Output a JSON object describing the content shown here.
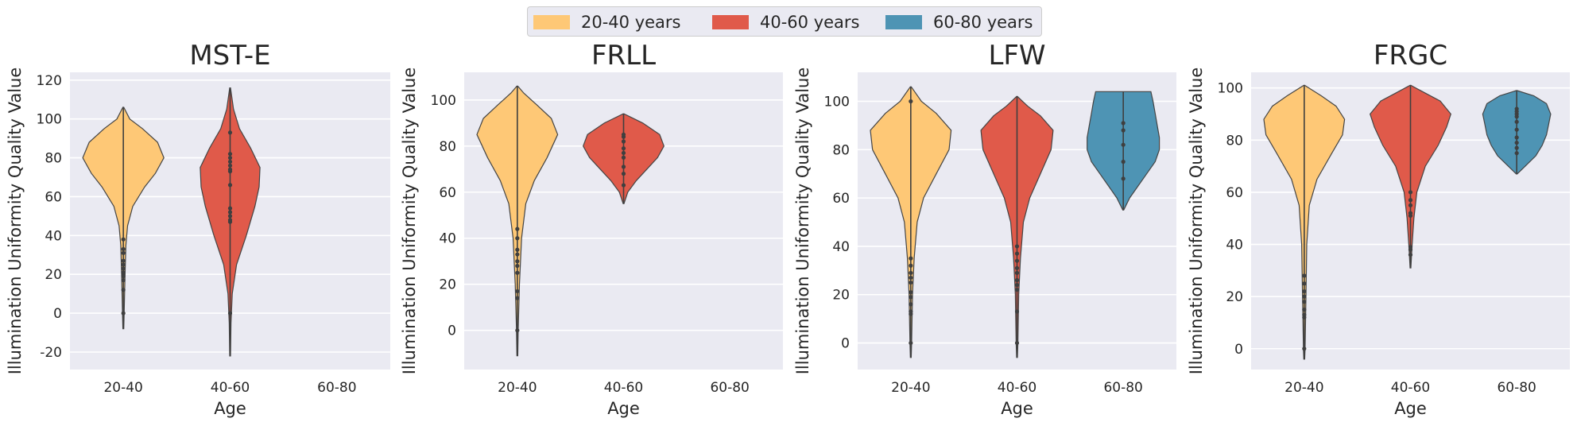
{
  "legend": {
    "placement": "top-center",
    "items": [
      {
        "label": "20-40 years",
        "color": "#fec876"
      },
      {
        "label": "40-60 years",
        "color": "#e05a4a"
      },
      {
        "label": "60-80 years",
        "color": "#4e94b4"
      }
    ]
  },
  "chart_data": [
    {
      "type": "violin",
      "title": "MST-E",
      "xlabel": "Age",
      "ylabel": "Illumination Uniformity Quality Value",
      "categories": [
        "20-40",
        "40-60",
        "60-80"
      ],
      "ylim": [
        -29,
        124
      ],
      "yticks": [
        -20,
        0,
        20,
        40,
        60,
        80,
        100,
        120
      ],
      "grid": true,
      "series": [
        {
          "category": "20-40",
          "color": "#fec876",
          "range": [
            -8,
            106
          ],
          "profile": [
            [
              -8,
              0.01
            ],
            [
              0,
              0.02
            ],
            [
              20,
              0.04
            ],
            [
              35,
              0.06
            ],
            [
              45,
              0.1
            ],
            [
              55,
              0.22
            ],
            [
              65,
              0.5
            ],
            [
              72,
              0.75
            ],
            [
              80,
              0.95
            ],
            [
              88,
              0.8
            ],
            [
              95,
              0.45
            ],
            [
              100,
              0.15
            ],
            [
              106,
              0.01
            ]
          ],
          "points": [
            0,
            12,
            17,
            19,
            20,
            21,
            23,
            25,
            27,
            31,
            33,
            38
          ]
        },
        {
          "category": "40-60",
          "color": "#e05a4a",
          "range": [
            -22,
            116
          ],
          "profile": [
            [
              -22,
              0.01
            ],
            [
              -5,
              0.02
            ],
            [
              10,
              0.05
            ],
            [
              25,
              0.15
            ],
            [
              40,
              0.38
            ],
            [
              55,
              0.58
            ],
            [
              65,
              0.68
            ],
            [
              75,
              0.7
            ],
            [
              85,
              0.48
            ],
            [
              95,
              0.22
            ],
            [
              105,
              0.08
            ],
            [
              116,
              0.01
            ]
          ],
          "points": [
            0,
            47,
            48,
            50,
            52,
            54,
            66,
            73,
            74,
            76,
            78,
            80,
            82,
            93
          ]
        }
      ]
    },
    {
      "type": "violin",
      "title": "FRLL",
      "xlabel": "Age",
      "ylabel": "Illumination Uniformity Quality Value",
      "categories": [
        "20-40",
        "40-60",
        "60-80"
      ],
      "ylim": [
        -17,
        112
      ],
      "yticks": [
        0,
        20,
        40,
        60,
        80,
        100
      ],
      "grid": true,
      "series": [
        {
          "category": "20-40",
          "color": "#fec876",
          "range": [
            -11,
            106
          ],
          "profile": [
            [
              -11,
              0.01
            ],
            [
              0,
              0.02
            ],
            [
              20,
              0.05
            ],
            [
              40,
              0.1
            ],
            [
              55,
              0.2
            ],
            [
              65,
              0.4
            ],
            [
              75,
              0.7
            ],
            [
              85,
              0.95
            ],
            [
              92,
              0.8
            ],
            [
              98,
              0.45
            ],
            [
              103,
              0.15
            ],
            [
              106,
              0.01
            ]
          ],
          "points": [
            0,
            14,
            17,
            25,
            28,
            30,
            33,
            35,
            40,
            44
          ]
        },
        {
          "category": "40-60",
          "color": "#e05a4a",
          "range": [
            55,
            94
          ],
          "profile": [
            [
              55,
              0.01
            ],
            [
              60,
              0.1
            ],
            [
              65,
              0.3
            ],
            [
              70,
              0.55
            ],
            [
              75,
              0.8
            ],
            [
              80,
              0.95
            ],
            [
              85,
              0.85
            ],
            [
              90,
              0.45
            ],
            [
              94,
              0.01
            ]
          ],
          "points": [
            63,
            68,
            71,
            75,
            77,
            79,
            82,
            84,
            85
          ]
        }
      ]
    },
    {
      "type": "violin",
      "title": "LFW",
      "xlabel": "Age",
      "ylabel": "Illumination Uniformity Quality Value",
      "categories": [
        "20-40",
        "40-60",
        "60-80"
      ],
      "ylim": [
        -11,
        112
      ],
      "yticks": [
        0,
        20,
        40,
        60,
        80,
        100
      ],
      "grid": true,
      "series": [
        {
          "category": "20-40",
          "color": "#fec876",
          "range": [
            -6,
            106
          ],
          "profile": [
            [
              -6,
              0.01
            ],
            [
              0,
              0.02
            ],
            [
              20,
              0.04
            ],
            [
              35,
              0.08
            ],
            [
              50,
              0.15
            ],
            [
              60,
              0.3
            ],
            [
              70,
              0.6
            ],
            [
              80,
              0.9
            ],
            [
              88,
              0.95
            ],
            [
              95,
              0.6
            ],
            [
              100,
              0.25
            ],
            [
              106,
              0.01
            ]
          ],
          "points": [
            0,
            12,
            13,
            16,
            19,
            21,
            25,
            27,
            29,
            32,
            35,
            100
          ]
        },
        {
          "category": "40-60",
          "color": "#e05a4a",
          "range": [
            -6,
            102
          ],
          "profile": [
            [
              -6,
              0.01
            ],
            [
              0,
              0.02
            ],
            [
              20,
              0.04
            ],
            [
              35,
              0.08
            ],
            [
              50,
              0.15
            ],
            [
              60,
              0.3
            ],
            [
              70,
              0.55
            ],
            [
              80,
              0.8
            ],
            [
              88,
              0.85
            ],
            [
              94,
              0.55
            ],
            [
              98,
              0.25
            ],
            [
              102,
              0.01
            ]
          ],
          "points": [
            0,
            13,
            22,
            24,
            26,
            29,
            31,
            34,
            37,
            40
          ]
        },
        {
          "category": "60-80",
          "color": "#4e94b4",
          "range": [
            55,
            104
          ],
          "profile": [
            [
              55,
              0.01
            ],
            [
              60,
              0.15
            ],
            [
              65,
              0.35
            ],
            [
              70,
              0.55
            ],
            [
              75,
              0.75
            ],
            [
              80,
              0.85
            ],
            [
              85,
              0.85
            ],
            [
              90,
              0.8
            ],
            [
              95,
              0.75
            ],
            [
              100,
              0.7
            ],
            [
              104,
              0.65
            ]
          ],
          "points": [
            68,
            75,
            82,
            88,
            91
          ]
        }
      ]
    },
    {
      "type": "violin",
      "title": "FRGC",
      "xlabel": "Age",
      "ylabel": "Illumination Uniformity Quality Value",
      "categories": [
        "20-40",
        "40-60",
        "60-80"
      ],
      "ylim": [
        -8,
        106
      ],
      "yticks": [
        0,
        20,
        40,
        60,
        80,
        100
      ],
      "grid": true,
      "series": [
        {
          "category": "20-40",
          "color": "#fec876",
          "range": [
            -4,
            101
          ],
          "profile": [
            [
              -4,
              0.01
            ],
            [
              0,
              0.02
            ],
            [
              20,
              0.04
            ],
            [
              40,
              0.06
            ],
            [
              55,
              0.12
            ],
            [
              65,
              0.3
            ],
            [
              75,
              0.65
            ],
            [
              82,
              0.9
            ],
            [
              88,
              0.95
            ],
            [
              93,
              0.75
            ],
            [
              97,
              0.4
            ],
            [
              101,
              0.01
            ]
          ],
          "points": [
            0,
            12,
            13,
            15,
            18,
            20,
            22,
            25,
            28
          ]
        },
        {
          "category": "40-60",
          "color": "#e05a4a",
          "range": [
            31,
            101
          ],
          "profile": [
            [
              31,
              0.01
            ],
            [
              40,
              0.04
            ],
            [
              50,
              0.08
            ],
            [
              60,
              0.15
            ],
            [
              70,
              0.35
            ],
            [
              78,
              0.65
            ],
            [
              85,
              0.85
            ],
            [
              90,
              0.95
            ],
            [
              95,
              0.7
            ],
            [
              98,
              0.35
            ],
            [
              101,
              0.01
            ]
          ],
          "points": [
            36,
            38,
            39,
            51,
            52,
            55,
            57,
            60
          ]
        },
        {
          "category": "60-80",
          "color": "#4e94b4",
          "range": [
            67,
            99
          ],
          "profile": [
            [
              67,
              0.01
            ],
            [
              70,
              0.2
            ],
            [
              74,
              0.45
            ],
            [
              78,
              0.6
            ],
            [
              82,
              0.7
            ],
            [
              86,
              0.75
            ],
            [
              90,
              0.8
            ],
            [
              94,
              0.7
            ],
            [
              97,
              0.4
            ],
            [
              99,
              0.01
            ]
          ],
          "points": [
            75,
            77,
            79,
            81,
            84,
            87,
            89,
            90,
            91,
            92
          ]
        }
      ]
    }
  ]
}
